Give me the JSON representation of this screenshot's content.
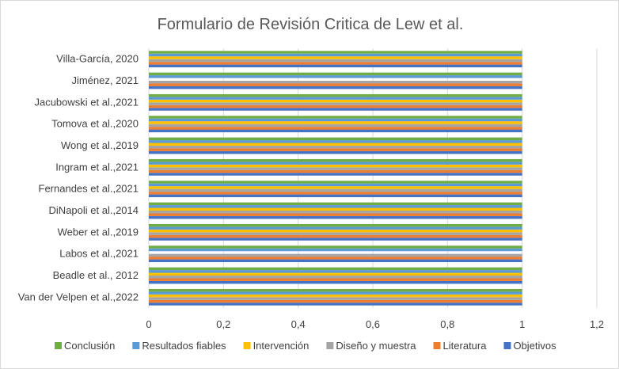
{
  "chart_data": {
    "type": "bar",
    "orientation": "horizontal",
    "title": "Formulario de Revisión Critica de Lew et al.",
    "xlabel": "",
    "ylabel": "",
    "xlim": [
      0,
      1.2
    ],
    "x_ticks": [
      "0",
      "0,2",
      "0,4",
      "0,6",
      "0,8",
      "1",
      "1,2"
    ],
    "grid": true,
    "legend_position": "bottom",
    "categories": [
      "Van der Velpen et al.,2022",
      "Beadle et al., 2012",
      "Labos et al.,2021",
      "Weber et al.,2019",
      "DiNapoli et al.,2014",
      "Fernandes et al.,2021",
      "Ingram et al.,2021",
      "Wong et al.,2019",
      "Tomova et al.,2020",
      "Jacubowski et al.,2021",
      "Jiménez, 2021",
      "Villa-García, 2020"
    ],
    "series": [
      {
        "name": "Objetivos",
        "color": "#4472c4",
        "values": [
          1,
          1,
          1,
          1,
          1,
          1,
          1,
          1,
          1,
          1,
          1,
          1
        ]
      },
      {
        "name": "Literatura",
        "color": "#ed7d31",
        "values": [
          1,
          1,
          1,
          1,
          1,
          1,
          1,
          1,
          1,
          1,
          1,
          1
        ]
      },
      {
        "name": "Diseño y muestra",
        "color": "#a5a5a5",
        "values": [
          1,
          1,
          1,
          1,
          1,
          1,
          1,
          1,
          1,
          1,
          1,
          1
        ]
      },
      {
        "name": "Intervención",
        "color": "#ffc000",
        "values": [
          1,
          1,
          0,
          1,
          1,
          1,
          1,
          1,
          1,
          1,
          0,
          1
        ]
      },
      {
        "name": "Resultados fiables",
        "color": "#5b9bd5",
        "values": [
          1,
          1,
          1,
          1,
          1,
          1,
          1,
          1,
          1,
          1,
          1,
          1
        ]
      },
      {
        "name": "Conclusión",
        "color": "#70ad47",
        "values": [
          1,
          1,
          1,
          1,
          1,
          1,
          1,
          1,
          1,
          1,
          1,
          1
        ]
      }
    ],
    "legend_order": [
      "Conclusión",
      "Resultados fiables",
      "Intervención",
      "Diseño y muestra",
      "Literatura",
      "Objetivos"
    ]
  }
}
